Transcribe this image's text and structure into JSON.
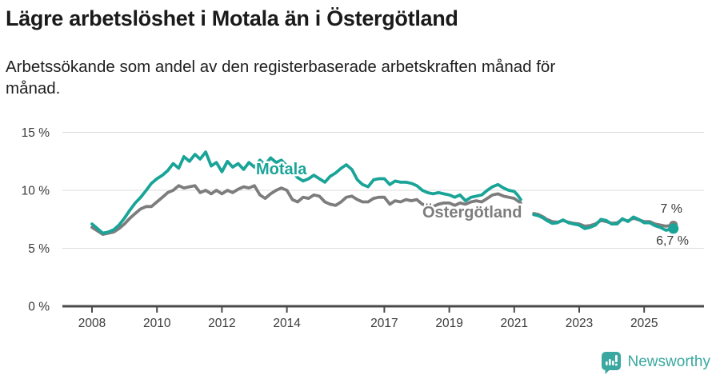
{
  "header": {
    "title": "Lägre arbetslöshet i Motala än i Östergötland",
    "subtitle": "Arbetssökande som andel av den registerbaserade arbetskraften månad för månad."
  },
  "footer": {
    "brand": "Newsworthy",
    "brand_color": "#3aa8a0"
  },
  "chart_data": {
    "type": "line",
    "title": "Lägre arbetslöshet i Motala än i Östergötland",
    "subtitle": "Arbetssökande som andel av den registerbaserade arbetskraften månad för månad.",
    "xlabel": "",
    "ylabel": "",
    "ylim": [
      0,
      15
    ],
    "xlim": [
      2007.1,
      2026.9
    ],
    "grid": true,
    "legend_position": "inline-labels",
    "note": "series have a data gap between 2021.2 and 2021.6",
    "y_axis": {
      "ticks": [
        {
          "value": 0,
          "label": "0 %"
        },
        {
          "value": 5,
          "label": "5 %"
        },
        {
          "value": 10,
          "label": "10 %"
        },
        {
          "value": 15,
          "label": "15 %"
        }
      ]
    },
    "x_axis": {
      "ticks": [
        {
          "value": 2008,
          "label": "2008"
        },
        {
          "value": 2010,
          "label": "2010"
        },
        {
          "value": 2012,
          "label": "2012"
        },
        {
          "value": 2014,
          "label": "2014"
        },
        {
          "value": 2017,
          "label": "2017"
        },
        {
          "value": 2019,
          "label": "2019"
        },
        {
          "value": 2021,
          "label": "2021"
        },
        {
          "value": 2023,
          "label": "2023"
        },
        {
          "value": 2025,
          "label": "2025"
        }
      ]
    },
    "series": [
      {
        "name": "Östergötland",
        "color": "#7d7d7d",
        "end_label": "7 %",
        "end_value": 7.0,
        "segments": [
          [
            [
              2008.0,
              6.8
            ],
            [
              2008.17,
              6.5
            ],
            [
              2008.33,
              6.2
            ],
            [
              2008.5,
              6.3
            ],
            [
              2008.67,
              6.4
            ],
            [
              2008.83,
              6.7
            ],
            [
              2009.0,
              7.1
            ],
            [
              2009.17,
              7.6
            ],
            [
              2009.33,
              8.0
            ],
            [
              2009.5,
              8.4
            ],
            [
              2009.67,
              8.6
            ],
            [
              2009.83,
              8.6
            ],
            [
              2010.0,
              9.0
            ],
            [
              2010.17,
              9.4
            ],
            [
              2010.33,
              9.8
            ],
            [
              2010.5,
              10.0
            ],
            [
              2010.67,
              10.4
            ],
            [
              2010.83,
              10.2
            ],
            [
              2011.0,
              10.3
            ],
            [
              2011.17,
              10.4
            ],
            [
              2011.33,
              9.8
            ],
            [
              2011.5,
              10.0
            ],
            [
              2011.67,
              9.7
            ],
            [
              2011.83,
              10.0
            ],
            [
              2012.0,
              9.7
            ],
            [
              2012.17,
              10.0
            ],
            [
              2012.33,
              9.8
            ],
            [
              2012.5,
              10.1
            ],
            [
              2012.67,
              10.3
            ],
            [
              2012.83,
              10.2
            ],
            [
              2013.0,
              10.4
            ],
            [
              2013.17,
              9.6
            ],
            [
              2013.33,
              9.3
            ],
            [
              2013.5,
              9.7
            ],
            [
              2013.67,
              10.0
            ],
            [
              2013.83,
              10.2
            ],
            [
              2014.0,
              10.0
            ],
            [
              2014.17,
              9.2
            ],
            [
              2014.33,
              9.0
            ],
            [
              2014.5,
              9.4
            ],
            [
              2014.67,
              9.3
            ],
            [
              2014.83,
              9.6
            ],
            [
              2015.0,
              9.5
            ],
            [
              2015.17,
              9.0
            ],
            [
              2015.33,
              8.8
            ],
            [
              2015.5,
              8.7
            ],
            [
              2015.67,
              9.0
            ],
            [
              2015.83,
              9.4
            ],
            [
              2016.0,
              9.5
            ],
            [
              2016.17,
              9.2
            ],
            [
              2016.33,
              9.0
            ],
            [
              2016.5,
              9.0
            ],
            [
              2016.67,
              9.3
            ],
            [
              2016.83,
              9.4
            ],
            [
              2017.0,
              9.4
            ],
            [
              2017.17,
              8.8
            ],
            [
              2017.33,
              9.1
            ],
            [
              2017.5,
              9.0
            ],
            [
              2017.67,
              9.2
            ],
            [
              2017.83,
              9.1
            ],
            [
              2018.0,
              9.2
            ],
            [
              2018.17,
              8.8
            ],
            [
              2018.33,
              8.7
            ],
            [
              2018.5,
              8.6
            ],
            [
              2018.67,
              8.8
            ],
            [
              2018.83,
              8.9
            ],
            [
              2019.0,
              8.9
            ],
            [
              2019.17,
              8.7
            ],
            [
              2019.33,
              8.9
            ],
            [
              2019.5,
              8.8
            ],
            [
              2019.67,
              9.0
            ],
            [
              2019.83,
              9.1
            ],
            [
              2020.0,
              9.0
            ],
            [
              2020.17,
              9.3
            ],
            [
              2020.33,
              9.6
            ],
            [
              2020.5,
              9.7
            ],
            [
              2020.67,
              9.5
            ],
            [
              2020.83,
              9.4
            ],
            [
              2021.0,
              9.3
            ],
            [
              2021.1,
              9.1
            ],
            [
              2021.2,
              8.9
            ]
          ],
          [
            [
              2021.6,
              8.0
            ],
            [
              2021.75,
              7.9
            ],
            [
              2021.9,
              7.7
            ],
            [
              2022.0,
              7.5
            ],
            [
              2022.17,
              7.3
            ],
            [
              2022.33,
              7.25
            ],
            [
              2022.5,
              7.4
            ],
            [
              2022.67,
              7.25
            ],
            [
              2022.83,
              7.15
            ],
            [
              2023.0,
              7.1
            ],
            [
              2023.17,
              6.9
            ],
            [
              2023.33,
              6.95
            ],
            [
              2023.5,
              7.1
            ],
            [
              2023.67,
              7.4
            ],
            [
              2023.83,
              7.3
            ],
            [
              2024.0,
              7.15
            ],
            [
              2024.17,
              7.2
            ],
            [
              2024.33,
              7.5
            ],
            [
              2024.5,
              7.35
            ],
            [
              2024.67,
              7.6
            ],
            [
              2024.83,
              7.45
            ],
            [
              2025.0,
              7.3
            ],
            [
              2025.17,
              7.3
            ],
            [
              2025.33,
              7.1
            ],
            [
              2025.5,
              7.0
            ],
            [
              2025.67,
              6.9
            ],
            [
              2025.9,
              7.0
            ]
          ]
        ]
      },
      {
        "name": "Motala",
        "color": "#1aa498",
        "end_label": "6,7 %",
        "end_value": 6.7,
        "segments": [
          [
            [
              2008.0,
              7.1
            ],
            [
              2008.17,
              6.7
            ],
            [
              2008.33,
              6.3
            ],
            [
              2008.5,
              6.4
            ],
            [
              2008.67,
              6.6
            ],
            [
              2008.83,
              7.0
            ],
            [
              2009.0,
              7.6
            ],
            [
              2009.17,
              8.3
            ],
            [
              2009.33,
              8.9
            ],
            [
              2009.5,
              9.4
            ],
            [
              2009.67,
              10.0
            ],
            [
              2009.83,
              10.6
            ],
            [
              2010.0,
              11.0
            ],
            [
              2010.17,
              11.3
            ],
            [
              2010.33,
              11.7
            ],
            [
              2010.5,
              12.3
            ],
            [
              2010.67,
              11.9
            ],
            [
              2010.83,
              12.9
            ],
            [
              2011.0,
              12.5
            ],
            [
              2011.17,
              13.1
            ],
            [
              2011.33,
              12.7
            ],
            [
              2011.5,
              13.3
            ],
            [
              2011.67,
              12.1
            ],
            [
              2011.83,
              12.4
            ],
            [
              2012.0,
              11.6
            ],
            [
              2012.17,
              12.5
            ],
            [
              2012.33,
              12.0
            ],
            [
              2012.5,
              12.3
            ],
            [
              2012.67,
              11.8
            ],
            [
              2012.83,
              12.4
            ],
            [
              2013.0,
              12.0
            ],
            [
              2013.17,
              12.6
            ],
            [
              2013.33,
              12.2
            ],
            [
              2013.5,
              12.8
            ],
            [
              2013.67,
              12.4
            ],
            [
              2013.83,
              12.6
            ],
            [
              2014.0,
              12.1
            ],
            [
              2014.17,
              11.6
            ],
            [
              2014.33,
              11.1
            ],
            [
              2014.5,
              10.8
            ],
            [
              2014.67,
              11.0
            ],
            [
              2014.83,
              11.3
            ],
            [
              2015.0,
              11.0
            ],
            [
              2015.17,
              10.7
            ],
            [
              2015.33,
              11.2
            ],
            [
              2015.5,
              11.5
            ],
            [
              2015.67,
              11.9
            ],
            [
              2015.83,
              12.2
            ],
            [
              2016.0,
              11.8
            ],
            [
              2016.17,
              10.9
            ],
            [
              2016.33,
              10.5
            ],
            [
              2016.5,
              10.3
            ],
            [
              2016.67,
              10.9
            ],
            [
              2016.83,
              11.0
            ],
            [
              2017.0,
              11.0
            ],
            [
              2017.17,
              10.5
            ],
            [
              2017.33,
              10.8
            ],
            [
              2017.5,
              10.7
            ],
            [
              2017.67,
              10.7
            ],
            [
              2017.83,
              10.6
            ],
            [
              2018.0,
              10.4
            ],
            [
              2018.17,
              10.0
            ],
            [
              2018.33,
              9.8
            ],
            [
              2018.5,
              9.7
            ],
            [
              2018.67,
              9.8
            ],
            [
              2018.83,
              9.7
            ],
            [
              2019.0,
              9.6
            ],
            [
              2019.17,
              9.4
            ],
            [
              2019.33,
              9.6
            ],
            [
              2019.5,
              9.1
            ],
            [
              2019.67,
              9.4
            ],
            [
              2019.83,
              9.5
            ],
            [
              2020.0,
              9.6
            ],
            [
              2020.17,
              10.0
            ],
            [
              2020.33,
              10.3
            ],
            [
              2020.5,
              10.5
            ],
            [
              2020.67,
              10.2
            ],
            [
              2020.83,
              10.0
            ],
            [
              2021.0,
              9.9
            ],
            [
              2021.1,
              9.6
            ],
            [
              2021.2,
              9.2
            ]
          ],
          [
            [
              2021.6,
              7.9
            ],
            [
              2021.75,
              7.8
            ],
            [
              2021.9,
              7.6
            ],
            [
              2022.0,
              7.4
            ],
            [
              2022.17,
              7.15
            ],
            [
              2022.33,
              7.2
            ],
            [
              2022.5,
              7.45
            ],
            [
              2022.67,
              7.2
            ],
            [
              2022.83,
              7.1
            ],
            [
              2023.0,
              7.0
            ],
            [
              2023.17,
              6.7
            ],
            [
              2023.33,
              6.8
            ],
            [
              2023.5,
              7.0
            ],
            [
              2023.67,
              7.5
            ],
            [
              2023.83,
              7.4
            ],
            [
              2024.0,
              7.1
            ],
            [
              2024.17,
              7.1
            ],
            [
              2024.33,
              7.55
            ],
            [
              2024.5,
              7.3
            ],
            [
              2024.67,
              7.7
            ],
            [
              2024.83,
              7.5
            ],
            [
              2025.0,
              7.2
            ],
            [
              2025.17,
              7.2
            ],
            [
              2025.33,
              6.95
            ],
            [
              2025.5,
              6.8
            ],
            [
              2025.67,
              6.55
            ],
            [
              2025.9,
              6.7
            ]
          ]
        ]
      }
    ]
  }
}
